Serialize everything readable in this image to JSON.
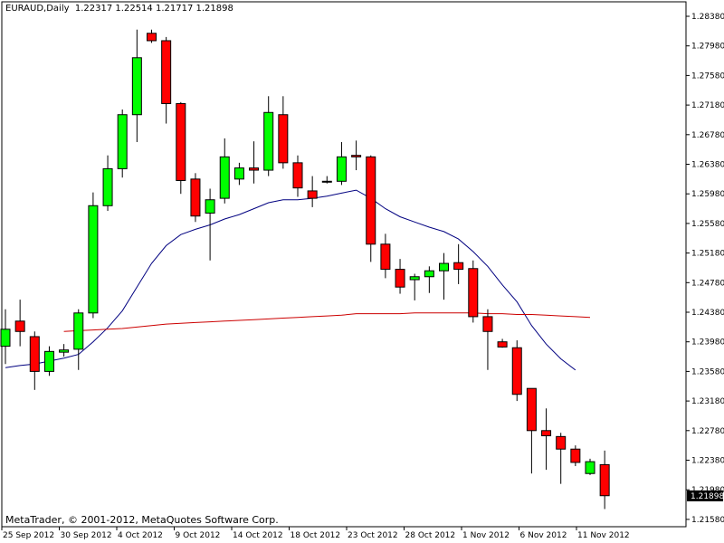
{
  "header": {
    "symbol": "EURAUD,Daily",
    "ohlc": "1.22317 1.22514 1.21717 1.21898"
  },
  "footer": {
    "copyright": "MetaTrader, © 2001-2012, MetaQuotes Software Corp."
  },
  "colors": {
    "background": "#ffffff",
    "axes": "#000000",
    "bull": "#00ff00",
    "bear": "#ff0000",
    "wick": "#000000",
    "ma_fast": "#000080",
    "ma_slow": "#cc0000",
    "current_price_bg": "#000000",
    "current_price_text": "#ffffff"
  },
  "chart_data": {
    "type": "candlestick",
    "ylim": [
      1.2145,
      1.2853
    ],
    "yticks": [
      "1.28380",
      "1.27980",
      "1.27580",
      "1.27180",
      "1.26780",
      "1.26380",
      "1.25980",
      "1.25580",
      "1.25180",
      "1.24780",
      "1.24380",
      "1.23980",
      "1.23580",
      "1.23180",
      "1.22780",
      "1.22380",
      "1.21980",
      "1.21580"
    ],
    "xticks": [
      "25 Sep 2012",
      "30 Sep 2012",
      "4 Oct 2012",
      "9 Oct 2012",
      "14 Oct 2012",
      "18 Oct 2012",
      "23 Oct 2012",
      "28 Oct 2012",
      "1 Nov 2012",
      "6 Nov 2012",
      "11 Nov 2012"
    ],
    "current_price": "1.21898",
    "candles": [
      {
        "o": 1.2392,
        "h": 1.2442,
        "l": 1.2368,
        "c": 1.2415
      },
      {
        "o": 1.2426,
        "h": 1.2455,
        "l": 1.2392,
        "c": 1.2412
      },
      {
        "o": 1.2405,
        "h": 1.2412,
        "l": 1.2333,
        "c": 1.2358
      },
      {
        "o": 1.2358,
        "h": 1.2392,
        "l": 1.2352,
        "c": 1.2385
      },
      {
        "o": 1.2384,
        "h": 1.2395,
        "l": 1.2378,
        "c": 1.2387
      },
      {
        "o": 1.2388,
        "h": 1.2442,
        "l": 1.236,
        "c": 1.2437
      },
      {
        "o": 1.2437,
        "h": 1.26,
        "l": 1.243,
        "c": 1.2582
      },
      {
        "o": 1.2582,
        "h": 1.265,
        "l": 1.2575,
        "c": 1.2632
      },
      {
        "o": 1.2632,
        "h": 1.2712,
        "l": 1.262,
        "c": 1.2705
      },
      {
        "o": 1.2705,
        "h": 1.282,
        "l": 1.2668,
        "c": 1.2782
      },
      {
        "o": 1.2815,
        "h": 1.282,
        "l": 1.2802,
        "c": 1.2805
      },
      {
        "o": 1.2805,
        "h": 1.281,
        "l": 1.2693,
        "c": 1.272
      },
      {
        "o": 1.272,
        "h": 1.2722,
        "l": 1.2598,
        "c": 1.2616
      },
      {
        "o": 1.2618,
        "h": 1.2626,
        "l": 1.256,
        "c": 1.2568
      },
      {
        "o": 1.2572,
        "h": 1.2605,
        "l": 1.2508,
        "c": 1.259
      },
      {
        "o": 1.2592,
        "h": 1.2673,
        "l": 1.2585,
        "c": 1.2648
      },
      {
        "o": 1.2618,
        "h": 1.264,
        "l": 1.261,
        "c": 1.2633
      },
      {
        "o": 1.2633,
        "h": 1.2669,
        "l": 1.2612,
        "c": 1.263
      },
      {
        "o": 1.263,
        "h": 1.273,
        "l": 1.2622,
        "c": 1.2708
      },
      {
        "o": 1.2705,
        "h": 1.273,
        "l": 1.2632,
        "c": 1.264
      },
      {
        "o": 1.264,
        "h": 1.265,
        "l": 1.2594,
        "c": 1.2606
      },
      {
        "o": 1.2602,
        "h": 1.2622,
        "l": 1.258,
        "c": 1.2592
      },
      {
        "o": 1.2615,
        "h": 1.2622,
        "l": 1.2612,
        "c": 1.2614
      },
      {
        "o": 1.2615,
        "h": 1.2668,
        "l": 1.261,
        "c": 1.2648
      },
      {
        "o": 1.265,
        "h": 1.267,
        "l": 1.263,
        "c": 1.2648
      },
      {
        "o": 1.2648,
        "h": 1.265,
        "l": 1.2506,
        "c": 1.253
      },
      {
        "o": 1.253,
        "h": 1.2544,
        "l": 1.2484,
        "c": 1.2496
      },
      {
        "o": 1.2496,
        "h": 1.251,
        "l": 1.2463,
        "c": 1.2472
      },
      {
        "o": 1.2482,
        "h": 1.249,
        "l": 1.2454,
        "c": 1.2486
      },
      {
        "o": 1.2486,
        "h": 1.25,
        "l": 1.2464,
        "c": 1.2494
      },
      {
        "o": 1.2494,
        "h": 1.2518,
        "l": 1.2455,
        "c": 1.2504
      },
      {
        "o": 1.2505,
        "h": 1.253,
        "l": 1.2476,
        "c": 1.2496
      },
      {
        "o": 1.2497,
        "h": 1.2508,
        "l": 1.2424,
        "c": 1.2432
      },
      {
        "o": 1.2432,
        "h": 1.2442,
        "l": 1.236,
        "c": 1.2412
      },
      {
        "o": 1.2398,
        "h": 1.2402,
        "l": 1.239,
        "c": 1.2391
      },
      {
        "o": 1.239,
        "h": 1.24,
        "l": 1.2318,
        "c": 1.2327
      },
      {
        "o": 1.2335,
        "h": 1.2335,
        "l": 1.222,
        "c": 1.2278
      },
      {
        "o": 1.2278,
        "h": 1.2308,
        "l": 1.2225,
        "c": 1.2271
      },
      {
        "o": 1.227,
        "h": 1.2275,
        "l": 1.2206,
        "c": 1.2253
      },
      {
        "o": 1.2253,
        "h": 1.2258,
        "l": 1.223,
        "c": 1.2235
      },
      {
        "o": 1.222,
        "h": 1.224,
        "l": 1.2218,
        "c": 1.2236
      },
      {
        "o": 1.2232,
        "h": 1.2251,
        "l": 1.2172,
        "c": 1.219
      }
    ],
    "series": [
      {
        "values": [
          1.2363,
          1.2366,
          1.2368,
          1.2372,
          1.2376,
          1.2381,
          1.2398,
          1.2417,
          1.244,
          1.2472,
          1.2504,
          1.2528,
          1.2543,
          1.255,
          1.2556,
          1.2564,
          1.257,
          1.2578,
          1.2586,
          1.259,
          1.259,
          1.2592,
          1.2595,
          1.2599,
          1.2603,
          1.2592,
          1.2578,
          1.2567,
          1.256,
          1.2553,
          1.2547,
          1.2537,
          1.252,
          1.25,
          1.2475,
          1.2452,
          1.242,
          1.2395,
          1.2375,
          1.236,
          null,
          null
        ]
      },
      {
        "values": [
          null,
          null,
          null,
          null,
          1.2412,
          1.2413,
          1.2414,
          1.2415,
          1.2416,
          1.2418,
          1.242,
          1.2422,
          1.2423,
          1.2424,
          1.2425,
          1.2426,
          1.2427,
          1.2428,
          1.2429,
          1.243,
          1.2431,
          1.2432,
          1.2433,
          1.2434,
          1.2436,
          1.2436,
          1.2436,
          1.2436,
          1.2437,
          1.2437,
          1.2437,
          1.2437,
          1.2437,
          1.2436,
          1.2436,
          1.2435,
          1.2435,
          1.2434,
          1.2433,
          1.2432,
          1.2431,
          null
        ]
      }
    ]
  }
}
